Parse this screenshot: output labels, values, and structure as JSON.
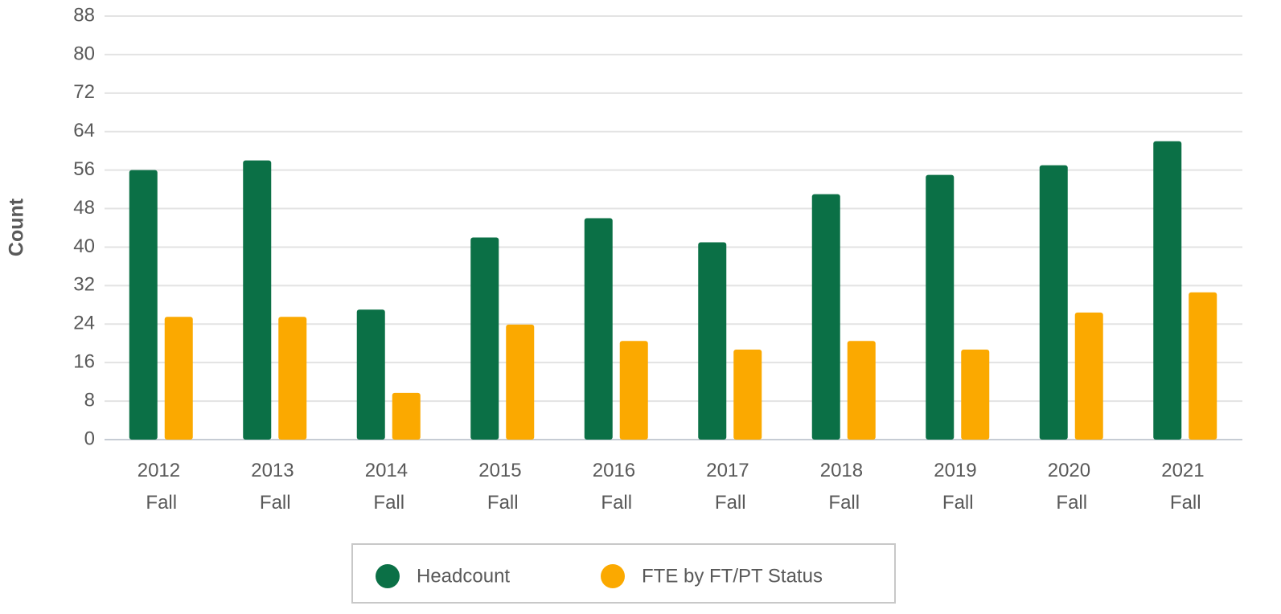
{
  "chart_data": {
    "type": "bar",
    "y_label": "Count",
    "categories": [
      "2012 Fall",
      "2013 Fall",
      "2014 Fall",
      "2015 Fall",
      "2016 Fall",
      "2017 Fall",
      "2018 Fall",
      "2019 Fall",
      "2020 Fall",
      "2021 Fall"
    ],
    "series": [
      {
        "name": "Headcount",
        "color": "#0b7046",
        "values": [
          56,
          58,
          27,
          42,
          46,
          41,
          51,
          55,
          57,
          62
        ]
      },
      {
        "name": "FTE by FT/PT Status",
        "color": "#fba900",
        "values": [
          25.5,
          25.5,
          9.7,
          23.9,
          20.5,
          18.7,
          20.5,
          18.7,
          26.4,
          30.6
        ]
      }
    ],
    "ylim": [
      0,
      88
    ],
    "yticks": [
      0,
      8,
      16,
      24,
      32,
      40,
      48,
      56,
      64,
      72,
      80,
      88
    ],
    "grid": true,
    "legend": "bottom"
  }
}
